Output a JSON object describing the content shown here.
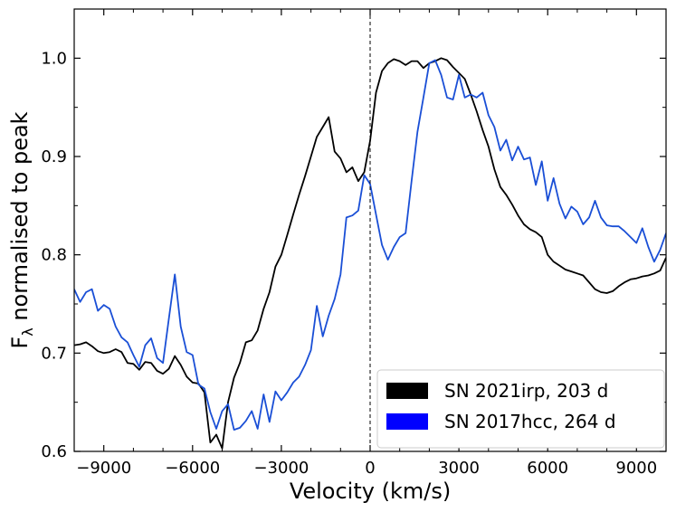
{
  "chart_data": {
    "type": "line",
    "xlabel": "Velocity (km/s)",
    "ylabel_main": "F",
    "ylabel_sub": "λ",
    "ylabel_rest": " normalised to peak",
    "xlim": [
      -10000,
      10000
    ],
    "ylim": [
      0.6,
      1.05
    ],
    "xticks": [
      -9000,
      -6000,
      -3000,
      0,
      3000,
      6000,
      9000
    ],
    "xtick_labels": [
      "−9000",
      "−6000",
      "−3000",
      "0",
      "3000",
      "6000",
      "9000"
    ],
    "yticks": [
      0.6,
      0.7,
      0.8,
      0.9,
      1.0
    ],
    "ytick_labels": [
      "0.6",
      "0.7",
      "0.8",
      "0.9",
      "1.0"
    ],
    "vline_x": 0,
    "legend_position": "lower-right",
    "series": [
      {
        "name": "SN 2021irp, 203 d",
        "color": "#000000",
        "points": [
          [
            -10000,
            0.708
          ],
          [
            -9800,
            0.709
          ],
          [
            -9600,
            0.711
          ],
          [
            -9400,
            0.707
          ],
          [
            -9200,
            0.702
          ],
          [
            -9000,
            0.7
          ],
          [
            -8800,
            0.701
          ],
          [
            -8600,
            0.704
          ],
          [
            -8400,
            0.701
          ],
          [
            -8200,
            0.69
          ],
          [
            -8000,
            0.689
          ],
          [
            -7800,
            0.683
          ],
          [
            -7600,
            0.691
          ],
          [
            -7400,
            0.69
          ],
          [
            -7200,
            0.682
          ],
          [
            -7000,
            0.679
          ],
          [
            -6800,
            0.684
          ],
          [
            -6600,
            0.697
          ],
          [
            -6400,
            0.688
          ],
          [
            -6200,
            0.676
          ],
          [
            -6000,
            0.67
          ],
          [
            -5800,
            0.669
          ],
          [
            -5600,
            0.66
          ],
          [
            -5400,
            0.609
          ],
          [
            -5200,
            0.617
          ],
          [
            -5000,
            0.603
          ],
          [
            -4800,
            0.65
          ],
          [
            -4600,
            0.675
          ],
          [
            -4400,
            0.69
          ],
          [
            -4200,
            0.711
          ],
          [
            -4000,
            0.713
          ],
          [
            -3800,
            0.723
          ],
          [
            -3600,
            0.745
          ],
          [
            -3400,
            0.762
          ],
          [
            -3200,
            0.788
          ],
          [
            -3000,
            0.8
          ],
          [
            -2800,
            0.82
          ],
          [
            -2600,
            0.841
          ],
          [
            -2400,
            0.861
          ],
          [
            -2200,
            0.88
          ],
          [
            -2000,
            0.9
          ],
          [
            -1800,
            0.92
          ],
          [
            -1600,
            0.93
          ],
          [
            -1400,
            0.94
          ],
          [
            -1200,
            0.905
          ],
          [
            -1000,
            0.898
          ],
          [
            -800,
            0.884
          ],
          [
            -600,
            0.889
          ],
          [
            -400,
            0.875
          ],
          [
            -200,
            0.884
          ],
          [
            0,
            0.916
          ],
          [
            200,
            0.965
          ],
          [
            400,
            0.987
          ],
          [
            600,
            0.995
          ],
          [
            800,
            0.999
          ],
          [
            1000,
            0.997
          ],
          [
            1200,
            0.993
          ],
          [
            1400,
            0.997
          ],
          [
            1600,
            0.997
          ],
          [
            1800,
            0.99
          ],
          [
            2000,
            0.995
          ],
          [
            2200,
            0.997
          ],
          [
            2400,
            1.0
          ],
          [
            2600,
            0.998
          ],
          [
            2800,
            0.991
          ],
          [
            3000,
            0.985
          ],
          [
            3200,
            0.979
          ],
          [
            3400,
            0.963
          ],
          [
            3600,
            0.946
          ],
          [
            3800,
            0.927
          ],
          [
            4000,
            0.91
          ],
          [
            4200,
            0.887
          ],
          [
            4400,
            0.869
          ],
          [
            4600,
            0.861
          ],
          [
            4800,
            0.851
          ],
          [
            5000,
            0.84
          ],
          [
            5200,
            0.831
          ],
          [
            5400,
            0.826
          ],
          [
            5600,
            0.823
          ],
          [
            5800,
            0.818
          ],
          [
            6000,
            0.8
          ],
          [
            6200,
            0.793
          ],
          [
            6400,
            0.789
          ],
          [
            6600,
            0.785
          ],
          [
            6800,
            0.783
          ],
          [
            7000,
            0.781
          ],
          [
            7200,
            0.779
          ],
          [
            7400,
            0.772
          ],
          [
            7600,
            0.765
          ],
          [
            7800,
            0.762
          ],
          [
            8000,
            0.761
          ],
          [
            8200,
            0.763
          ],
          [
            8400,
            0.768
          ],
          [
            8600,
            0.772
          ],
          [
            8800,
            0.775
          ],
          [
            9000,
            0.776
          ],
          [
            9200,
            0.778
          ],
          [
            9400,
            0.779
          ],
          [
            9600,
            0.781
          ],
          [
            9800,
            0.784
          ],
          [
            10000,
            0.797
          ]
        ]
      },
      {
        "name": "SN 2017hcc, 264 d",
        "color": "#1a4fd6",
        "legend_color": "#0000ff",
        "points": [
          [
            -10000,
            0.765
          ],
          [
            -9800,
            0.752
          ],
          [
            -9600,
            0.762
          ],
          [
            -9400,
            0.765
          ],
          [
            -9200,
            0.743
          ],
          [
            -9000,
            0.749
          ],
          [
            -8800,
            0.745
          ],
          [
            -8600,
            0.727
          ],
          [
            -8400,
            0.716
          ],
          [
            -8200,
            0.711
          ],
          [
            -8000,
            0.698
          ],
          [
            -7800,
            0.686
          ],
          [
            -7600,
            0.708
          ],
          [
            -7400,
            0.715
          ],
          [
            -7200,
            0.695
          ],
          [
            -7000,
            0.69
          ],
          [
            -6800,
            0.735
          ],
          [
            -6600,
            0.78
          ],
          [
            -6400,
            0.727
          ],
          [
            -6200,
            0.701
          ],
          [
            -6000,
            0.698
          ],
          [
            -5800,
            0.668
          ],
          [
            -5600,
            0.664
          ],
          [
            -5400,
            0.64
          ],
          [
            -5200,
            0.623
          ],
          [
            -5000,
            0.641
          ],
          [
            -4800,
            0.648
          ],
          [
            -4600,
            0.622
          ],
          [
            -4400,
            0.624
          ],
          [
            -4200,
            0.631
          ],
          [
            -4000,
            0.641
          ],
          [
            -3800,
            0.623
          ],
          [
            -3600,
            0.658
          ],
          [
            -3400,
            0.63
          ],
          [
            -3200,
            0.661
          ],
          [
            -3000,
            0.652
          ],
          [
            -2800,
            0.66
          ],
          [
            -2600,
            0.67
          ],
          [
            -2400,
            0.676
          ],
          [
            -2200,
            0.688
          ],
          [
            -2000,
            0.703
          ],
          [
            -1800,
            0.748
          ],
          [
            -1600,
            0.717
          ],
          [
            -1400,
            0.738
          ],
          [
            -1200,
            0.755
          ],
          [
            -1000,
            0.78
          ],
          [
            -800,
            0.838
          ],
          [
            -600,
            0.84
          ],
          [
            -400,
            0.845
          ],
          [
            -200,
            0.881
          ],
          [
            0,
            0.872
          ],
          [
            200,
            0.841
          ],
          [
            400,
            0.81
          ],
          [
            600,
            0.795
          ],
          [
            800,
            0.808
          ],
          [
            1000,
            0.818
          ],
          [
            1200,
            0.822
          ],
          [
            1400,
            0.875
          ],
          [
            1600,
            0.925
          ],
          [
            1800,
            0.96
          ],
          [
            2000,
            0.995
          ],
          [
            2200,
            0.998
          ],
          [
            2400,
            0.983
          ],
          [
            2600,
            0.96
          ],
          [
            2800,
            0.958
          ],
          [
            3000,
            0.983
          ],
          [
            3200,
            0.96
          ],
          [
            3400,
            0.963
          ],
          [
            3600,
            0.96
          ],
          [
            3800,
            0.965
          ],
          [
            4000,
            0.942
          ],
          [
            4200,
            0.93
          ],
          [
            4400,
            0.906
          ],
          [
            4600,
            0.917
          ],
          [
            4800,
            0.896
          ],
          [
            5000,
            0.91
          ],
          [
            5200,
            0.897
          ],
          [
            5400,
            0.899
          ],
          [
            5600,
            0.871
          ],
          [
            5800,
            0.895
          ],
          [
            6000,
            0.855
          ],
          [
            6200,
            0.878
          ],
          [
            6400,
            0.852
          ],
          [
            6600,
            0.837
          ],
          [
            6800,
            0.849
          ],
          [
            7000,
            0.844
          ],
          [
            7200,
            0.831
          ],
          [
            7400,
            0.838
          ],
          [
            7600,
            0.855
          ],
          [
            7800,
            0.838
          ],
          [
            8000,
            0.83
          ],
          [
            8200,
            0.829
          ],
          [
            8400,
            0.829
          ],
          [
            8600,
            0.824
          ],
          [
            8800,
            0.818
          ],
          [
            9000,
            0.812
          ],
          [
            9200,
            0.827
          ],
          [
            9400,
            0.808
          ],
          [
            9600,
            0.793
          ],
          [
            9800,
            0.805
          ],
          [
            10000,
            0.822
          ]
        ]
      }
    ]
  }
}
